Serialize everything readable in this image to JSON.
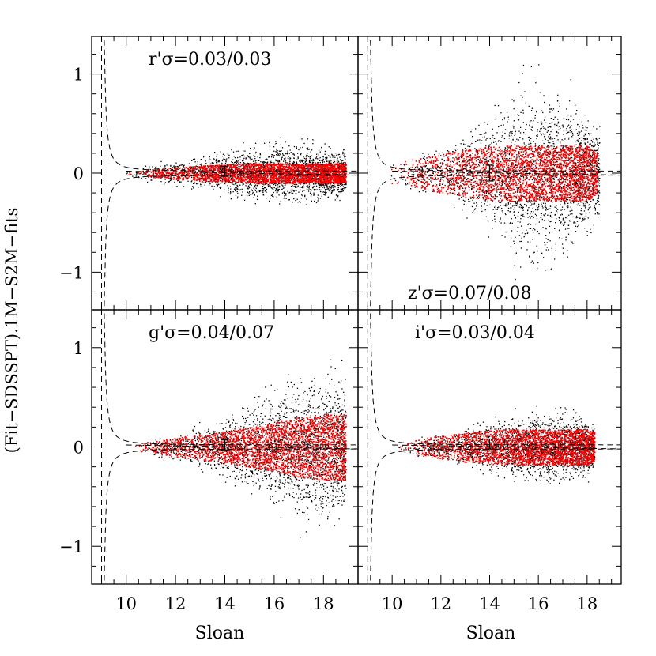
{
  "figure": {
    "ylabel": "(Fit−SDSSPT).1M−S2M−fits",
    "xlabel": "Sloan"
  },
  "colors": {
    "all_points": "#000000",
    "clipped_points": "#ff0000",
    "axes": "#000000"
  },
  "chart_data": [
    {
      "type": "scatter",
      "panel": "top-left",
      "annotation": "r'σ=0.03/0.03",
      "xlabel": "",
      "ylabel": "(Fit−SDSSPT).1M−S2M−fits",
      "xlim": [
        8.6,
        19.4
      ],
      "ylim": [
        -1.38,
        1.38
      ],
      "xticks": [],
      "yticks": [
        "1",
        "0",
        "−1"
      ],
      "yticks_values": [
        1,
        0,
        -1
      ],
      "series": [
        {
          "color": "#000000",
          "spread": [
            [
              9.9,
              0.02
            ],
            [
              10.5,
              0.05
            ],
            [
              11,
              0.12
            ],
            [
              12,
              0.15
            ],
            [
              13,
              0.2
            ],
            [
              14,
              0.25
            ],
            [
              15,
              0.3
            ],
            [
              16,
              0.35
            ],
            [
              17,
              0.35
            ],
            [
              18,
              0.3
            ],
            [
              18.9,
              0.28
            ]
          ]
        },
        {
          "color": "#ff0000",
          "spread": [
            [
              10,
              0.01
            ],
            [
              11,
              0.04
            ],
            [
              12,
              0.06
            ],
            [
              13,
              0.08
            ],
            [
              14,
              0.09
            ],
            [
              15,
              0.1
            ],
            [
              16,
              0.1
            ],
            [
              17,
              0.1
            ],
            [
              18,
              0.1
            ],
            [
              18.9,
              0.1
            ]
          ]
        }
      ],
      "errorbar": {
        "x": 14,
        "y": 0.02,
        "err": 0.05
      },
      "envelope_x_start": 9.0
    },
    {
      "type": "scatter",
      "panel": "top-right",
      "annotation": "z'σ=0.07/0.08",
      "xlabel": "",
      "ylabel": "",
      "xlim": [
        8.6,
        19.4
      ],
      "ylim": [
        -1.38,
        1.38
      ],
      "xticks": [],
      "yticks": [],
      "series": [
        {
          "color": "#000000",
          "spread": [
            [
              9.9,
              0.12
            ],
            [
              11,
              0.2
            ],
            [
              12,
              0.3
            ],
            [
              13,
              0.45
            ],
            [
              14,
              0.7
            ],
            [
              15,
              1.0
            ],
            [
              16,
              1.1
            ],
            [
              17,
              0.9
            ],
            [
              18,
              0.7
            ],
            [
              18.5,
              0.6
            ]
          ]
        },
        {
          "color": "#ff0000",
          "spread": [
            [
              9.9,
              0.1
            ],
            [
              11,
              0.15
            ],
            [
              12,
              0.2
            ],
            [
              13,
              0.24
            ],
            [
              14,
              0.27
            ],
            [
              15,
              0.28
            ],
            [
              16,
              0.28
            ],
            [
              17,
              0.28
            ],
            [
              18,
              0.28
            ],
            [
              18.4,
              0.2
            ]
          ]
        }
      ],
      "errorbar": {
        "x": 14,
        "y": 0.0,
        "err": 0.08
      },
      "envelope_x_start": 9.0
    },
    {
      "type": "scatter",
      "panel": "bottom-left",
      "annotation": "g'σ=0.04/0.07",
      "xlabel": "Sloan",
      "ylabel": "(Fit−SDSSPT).1M−S2M−fits",
      "xlim": [
        8.6,
        19.4
      ],
      "ylim": [
        -1.38,
        1.38
      ],
      "xticks": [
        "10",
        "12",
        "14",
        "16",
        "18"
      ],
      "xticks_values": [
        10,
        12,
        14,
        16,
        18
      ],
      "yticks": [
        "1",
        "0",
        "−1"
      ],
      "yticks_values": [
        1,
        0,
        -1
      ],
      "series": [
        {
          "color": "#000000",
          "spread": [
            [
              10.3,
              0.05
            ],
            [
              11,
              0.1
            ],
            [
              12,
              0.15
            ],
            [
              13,
              0.25
            ],
            [
              14,
              0.35
            ],
            [
              15,
              0.5
            ],
            [
              16,
              0.65
            ],
            [
              17,
              0.8
            ],
            [
              18,
              0.9
            ],
            [
              18.9,
              0.8
            ]
          ]
        },
        {
          "color": "#ff0000",
          "spread": [
            [
              10.3,
              0.03
            ],
            [
              11,
              0.06
            ],
            [
              12,
              0.1
            ],
            [
              13,
              0.13
            ],
            [
              14,
              0.16
            ],
            [
              15,
              0.2
            ],
            [
              16,
              0.25
            ],
            [
              17,
              0.3
            ],
            [
              18,
              0.33
            ],
            [
              18.9,
              0.33
            ]
          ]
        }
      ],
      "errorbar": {
        "x": 14,
        "y": 0.02,
        "err": 0.05
      },
      "envelope_x_start": 9.0
    },
    {
      "type": "scatter",
      "panel": "bottom-right",
      "annotation": "i'σ=0.03/0.04",
      "xlabel": "Sloan",
      "ylabel": "",
      "xlim": [
        8.6,
        19.4
      ],
      "ylim": [
        -1.38,
        1.38
      ],
      "xticks": [
        "10",
        "12",
        "14",
        "16",
        "18"
      ],
      "xticks_values": [
        10,
        12,
        14,
        16,
        18
      ],
      "yticks": [],
      "series": [
        {
          "color": "#000000",
          "spread": [
            [
              10.2,
              0.04
            ],
            [
              11,
              0.1
            ],
            [
              12,
              0.15
            ],
            [
              13,
              0.22
            ],
            [
              14,
              0.3
            ],
            [
              15,
              0.35
            ],
            [
              16,
              0.4
            ],
            [
              17,
              0.38
            ],
            [
              18,
              0.32
            ],
            [
              18.3,
              0.25
            ]
          ]
        },
        {
          "color": "#ff0000",
          "spread": [
            [
              10.2,
              0.03
            ],
            [
              11,
              0.08
            ],
            [
              12,
              0.12
            ],
            [
              13,
              0.15
            ],
            [
              14,
              0.17
            ],
            [
              15,
              0.18
            ],
            [
              16,
              0.18
            ],
            [
              17,
              0.18
            ],
            [
              18,
              0.18
            ],
            [
              18.3,
              0.15
            ]
          ]
        }
      ],
      "errorbar": {
        "x": 14,
        "y": 0.03,
        "err": 0.05
      },
      "envelope_x_start": 9.0
    }
  ]
}
